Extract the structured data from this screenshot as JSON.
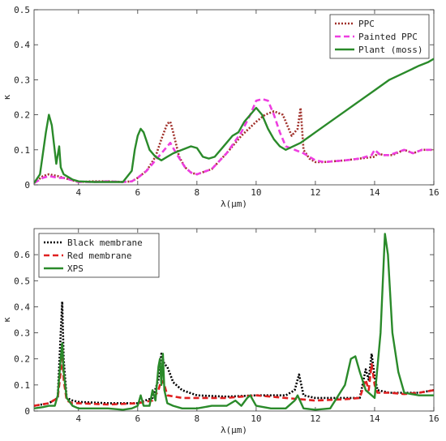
{
  "chart_data": [
    {
      "type": "line",
      "xlabel": "λ(μm)",
      "ylabel": "κ",
      "xlim": [
        2.5,
        16
      ],
      "ylim": [
        0,
        0.5
      ],
      "xticks": [
        4,
        6,
        8,
        10,
        12,
        14,
        16
      ],
      "yticks": [
        0,
        0.1,
        0.2,
        0.3,
        0.4,
        0.5
      ],
      "grid": false,
      "legend": "top-right",
      "series": [
        {
          "name": "PPC",
          "color": "#a0302a",
          "style": "dotted",
          "x": [
            2.5,
            2.8,
            3.0,
            3.3,
            3.5,
            4.0,
            4.5,
            5.0,
            5.5,
            5.8,
            6.0,
            6.3,
            6.6,
            6.8,
            7.0,
            7.1,
            7.2,
            7.4,
            7.6,
            7.8,
            8.0,
            8.5,
            9.0,
            9.5,
            10.0,
            10.3,
            10.6,
            10.9,
            11.2,
            11.4,
            11.5,
            11.6,
            11.8,
            12.0,
            12.3,
            13.0,
            13.5,
            14.0,
            14.1,
            14.3,
            14.6,
            15.0,
            15.3,
            15.6,
            16.0
          ],
          "y": [
            0.005,
            0.025,
            0.03,
            0.025,
            0.02,
            0.008,
            0.01,
            0.01,
            0.008,
            0.01,
            0.02,
            0.04,
            0.08,
            0.13,
            0.175,
            0.18,
            0.15,
            0.08,
            0.05,
            0.035,
            0.03,
            0.045,
            0.09,
            0.14,
            0.18,
            0.2,
            0.21,
            0.2,
            0.14,
            0.16,
            0.22,
            0.1,
            0.075,
            0.065,
            0.065,
            0.07,
            0.075,
            0.08,
            0.09,
            0.085,
            0.085,
            0.1,
            0.09,
            0.1,
            0.1
          ]
        },
        {
          "name": "Painted PPC",
          "color": "#ee3ee0",
          "style": "dashed",
          "x": [
            2.5,
            2.8,
            3.0,
            3.3,
            3.5,
            4.0,
            4.5,
            5.0,
            5.5,
            5.8,
            6.0,
            6.3,
            6.6,
            6.9,
            7.1,
            7.3,
            7.6,
            7.8,
            8.0,
            8.5,
            9.0,
            9.5,
            9.8,
            10.0,
            10.2,
            10.4,
            10.6,
            10.8,
            11.0,
            11.3,
            11.6,
            12.0,
            12.3,
            13.0,
            13.5,
            13.9,
            14.0,
            14.2,
            14.5,
            15.0,
            15.3,
            15.6,
            16.0
          ],
          "y": [
            0.005,
            0.02,
            0.025,
            0.02,
            0.02,
            0.008,
            0.008,
            0.01,
            0.008,
            0.01,
            0.02,
            0.04,
            0.07,
            0.1,
            0.12,
            0.09,
            0.05,
            0.035,
            0.03,
            0.045,
            0.09,
            0.15,
            0.2,
            0.24,
            0.245,
            0.24,
            0.2,
            0.15,
            0.11,
            0.1,
            0.09,
            0.07,
            0.065,
            0.07,
            0.075,
            0.085,
            0.1,
            0.085,
            0.085,
            0.1,
            0.09,
            0.1,
            0.1
          ]
        },
        {
          "name": "Plant (moss)",
          "color": "#2a8a2a",
          "style": "solid",
          "x": [
            2.5,
            2.7,
            2.9,
            3.0,
            3.1,
            3.25,
            3.35,
            3.4,
            3.5,
            3.6,
            3.8,
            4.0,
            4.5,
            5.0,
            5.5,
            5.8,
            5.9,
            6.0,
            6.1,
            6.2,
            6.4,
            6.6,
            6.8,
            7.0,
            7.2,
            7.5,
            7.8,
            8.0,
            8.2,
            8.4,
            8.6,
            8.8,
            9.0,
            9.2,
            9.4,
            9.6,
            9.8,
            10.0,
            10.2,
            10.4,
            10.6,
            10.8,
            11.0,
            11.5,
            12.0,
            12.5,
            13.0,
            13.5,
            14.0,
            14.5,
            15.0,
            15.5,
            15.8,
            16.0
          ],
          "y": [
            0.005,
            0.03,
            0.15,
            0.2,
            0.17,
            0.06,
            0.11,
            0.05,
            0.03,
            0.025,
            0.015,
            0.01,
            0.008,
            0.008,
            0.008,
            0.04,
            0.1,
            0.14,
            0.16,
            0.15,
            0.1,
            0.08,
            0.07,
            0.08,
            0.09,
            0.1,
            0.11,
            0.105,
            0.08,
            0.075,
            0.08,
            0.1,
            0.12,
            0.14,
            0.15,
            0.18,
            0.2,
            0.22,
            0.2,
            0.16,
            0.13,
            0.11,
            0.1,
            0.12,
            0.15,
            0.18,
            0.21,
            0.24,
            0.27,
            0.3,
            0.32,
            0.34,
            0.35,
            0.36
          ]
        }
      ]
    },
    {
      "type": "line",
      "xlabel": "λ(μm)",
      "ylabel": "κ",
      "xlim": [
        2.5,
        16
      ],
      "ylim": [
        0,
        0.7
      ],
      "xticks": [
        4,
        6,
        8,
        10,
        12,
        14,
        16
      ],
      "yticks": [
        0,
        0.1,
        0.2,
        0.3,
        0.4,
        0.5,
        0.6
      ],
      "grid": false,
      "legend": "top-left",
      "series": [
        {
          "name": "Black membrane",
          "color": "#000000",
          "style": "dotted",
          "x": [
            2.5,
            3.0,
            3.3,
            3.4,
            3.45,
            3.5,
            3.6,
            3.8,
            4.0,
            5.0,
            6.0,
            6.5,
            6.7,
            6.8,
            6.9,
            7.0,
            7.2,
            7.5,
            8.0,
            9.0,
            10.0,
            11.0,
            11.3,
            11.45,
            11.6,
            12.0,
            13.0,
            13.5,
            13.7,
            13.8,
            13.9,
            14.0,
            14.1,
            14.5,
            15.0,
            15.5,
            16.0
          ],
          "y": [
            0.02,
            0.03,
            0.05,
            0.3,
            0.42,
            0.2,
            0.05,
            0.04,
            0.035,
            0.03,
            0.03,
            0.05,
            0.12,
            0.22,
            0.18,
            0.17,
            0.11,
            0.08,
            0.06,
            0.055,
            0.06,
            0.06,
            0.08,
            0.14,
            0.06,
            0.05,
            0.05,
            0.05,
            0.16,
            0.12,
            0.22,
            0.13,
            0.08,
            0.07,
            0.07,
            0.07,
            0.08
          ]
        },
        {
          "name": "Red membrane",
          "color": "#e02020",
          "style": "dashed",
          "x": [
            2.5,
            3.0,
            3.3,
            3.4,
            3.45,
            3.5,
            3.6,
            3.8,
            4.0,
            5.0,
            6.0,
            6.5,
            6.7,
            6.8,
            6.9,
            7.0,
            7.5,
            8.0,
            9.0,
            10.0,
            11.0,
            12.0,
            13.0,
            13.5,
            13.7,
            13.8,
            13.9,
            14.0,
            14.1,
            14.5,
            15.0,
            15.5,
            16.0
          ],
          "y": [
            0.02,
            0.03,
            0.05,
            0.15,
            0.25,
            0.12,
            0.04,
            0.03,
            0.03,
            0.025,
            0.03,
            0.04,
            0.08,
            0.12,
            0.1,
            0.06,
            0.05,
            0.05,
            0.05,
            0.06,
            0.05,
            0.04,
            0.045,
            0.05,
            0.12,
            0.08,
            0.18,
            0.1,
            0.07,
            0.07,
            0.065,
            0.07,
            0.08
          ]
        },
        {
          "name": "XPS",
          "color": "#2a8a2a",
          "style": "solid",
          "x": [
            2.5,
            2.8,
            3.0,
            3.2,
            3.3,
            3.4,
            3.45,
            3.5,
            3.6,
            3.8,
            4.0,
            4.5,
            5.0,
            5.5,
            5.8,
            6.0,
            6.1,
            6.2,
            6.4,
            6.5,
            6.6,
            6.7,
            6.75,
            6.8,
            6.85,
            6.9,
            7.0,
            7.2,
            7.5,
            8.0,
            8.5,
            9.0,
            9.3,
            9.5,
            9.7,
            9.8,
            10.0,
            10.5,
            11.0,
            11.3,
            11.4,
            11.6,
            12.0,
            12.5,
            13.0,
            13.2,
            13.35,
            13.5,
            13.7,
            14.0,
            14.2,
            14.35,
            14.45,
            14.6,
            14.8,
            15.0,
            15.5,
            16.0
          ],
          "y": [
            0.01,
            0.015,
            0.02,
            0.02,
            0.06,
            0.2,
            0.26,
            0.15,
            0.05,
            0.02,
            0.01,
            0.01,
            0.01,
            0.005,
            0.01,
            0.02,
            0.06,
            0.02,
            0.02,
            0.08,
            0.04,
            0.17,
            0.2,
            0.1,
            0.22,
            0.08,
            0.03,
            0.02,
            0.01,
            0.01,
            0.02,
            0.02,
            0.04,
            0.02,
            0.05,
            0.06,
            0.02,
            0.01,
            0.01,
            0.04,
            0.06,
            0.01,
            0.005,
            0.01,
            0.1,
            0.2,
            0.21,
            0.15,
            0.08,
            0.05,
            0.3,
            0.68,
            0.6,
            0.3,
            0.15,
            0.07,
            0.06,
            0.06
          ]
        }
      ]
    }
  ]
}
